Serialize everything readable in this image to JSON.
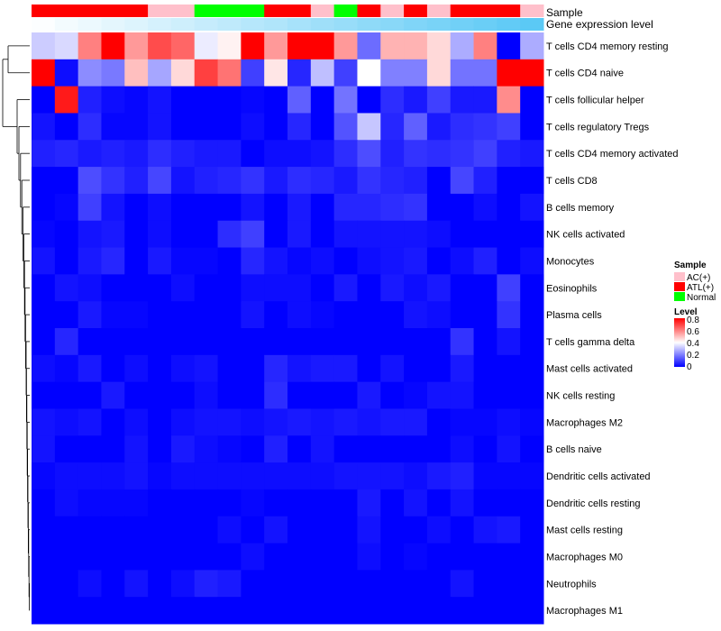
{
  "chart_data": {
    "type": "heatmap",
    "title": "",
    "top_annotations": [
      {
        "name": "Sample",
        "values": [
          "ATL(+)",
          "ATL(+)",
          "ATL(+)",
          "ATL(+)",
          "ATL(+)",
          "AC(+)",
          "AC(+)",
          "Normal",
          "Normal",
          "Normal",
          "ATL(+)",
          "ATL(+)",
          "AC(+)",
          "Normal",
          "ATL(+)",
          "AC(+)",
          "ATL(+)",
          "AC(+)",
          "ATL(+)",
          "ATL(+)",
          "ATL(+)",
          "AC(+)"
        ]
      },
      {
        "name": "Gene expression level",
        "values": [
          0.02,
          0.07,
          0.11,
          0.16,
          0.2,
          0.25,
          0.29,
          0.34,
          0.38,
          0.43,
          0.47,
          0.52,
          0.57,
          0.61,
          0.66,
          0.7,
          0.75,
          0.79,
          0.84,
          0.88,
          0.93,
          0.97
        ]
      }
    ],
    "rows": [
      "T cells CD4 memory resting",
      "T cells CD4 naive",
      "T cells follicular helper",
      "T cells regulatory  Tregs",
      "T cells CD4 memory activated",
      "T cells CD8",
      "B cells memory",
      "NK cells activated",
      "Monocytes",
      "Eosinophils",
      "Plasma cells",
      "T cells gamma delta",
      "Mast cells activated",
      "NK cells resting",
      "Macrophages M2",
      "B cells naive",
      "Dendritic cells activated",
      "Dendritic cells resting",
      "Mast cells resting",
      "Macrophages M0",
      "Neutrophils",
      "Macrophages M1"
    ],
    "values": [
      [
        0.32,
        0.34,
        0.6,
        0.8,
        0.56,
        0.68,
        0.64,
        0.37,
        0.42,
        0.8,
        0.56,
        0.8,
        0.8,
        0.56,
        0.17,
        0.52,
        0.52,
        0.46,
        0.27,
        0.6,
        0.0,
        0.27
      ],
      [
        0.8,
        0.02,
        0.22,
        0.19,
        0.5,
        0.26,
        0.46,
        0.7,
        0.62,
        0.1,
        0.44,
        0.06,
        0.3,
        0.1,
        0.4,
        0.2,
        0.2,
        0.46,
        0.18,
        0.18,
        0.8,
        0.8
      ],
      [
        0.0,
        0.76,
        0.05,
        0.02,
        0.01,
        0.03,
        0.0,
        0.0,
        0.0,
        0.01,
        0.0,
        0.15,
        0.0,
        0.18,
        0.0,
        0.07,
        0.04,
        0.1,
        0.04,
        0.04,
        0.58,
        0.0
      ],
      [
        0.03,
        0.0,
        0.07,
        0.01,
        0.01,
        0.03,
        0.0,
        0.0,
        0.0,
        0.02,
        0.0,
        0.06,
        0.0,
        0.13,
        0.31,
        0.06,
        0.15,
        0.04,
        0.07,
        0.08,
        0.1,
        0.0
      ],
      [
        0.05,
        0.06,
        0.04,
        0.05,
        0.04,
        0.07,
        0.05,
        0.04,
        0.04,
        0.0,
        0.02,
        0.02,
        0.03,
        0.07,
        0.12,
        0.05,
        0.08,
        0.07,
        0.08,
        0.1,
        0.05,
        0.04
      ],
      [
        0.0,
        0.0,
        0.12,
        0.08,
        0.05,
        0.11,
        0.03,
        0.05,
        0.06,
        0.08,
        0.04,
        0.07,
        0.06,
        0.04,
        0.08,
        0.06,
        0.05,
        0.0,
        0.11,
        0.05,
        0.0,
        0.0
      ],
      [
        0.0,
        0.01,
        0.1,
        0.03,
        0.0,
        0.02,
        0.0,
        0.0,
        0.0,
        0.03,
        0.0,
        0.04,
        0.0,
        0.06,
        0.06,
        0.07,
        0.08,
        0.0,
        0.0,
        0.02,
        0.0,
        0.03
      ],
      [
        0.01,
        0.0,
        0.03,
        0.04,
        0.0,
        0.02,
        0.0,
        0.0,
        0.07,
        0.1,
        0.0,
        0.04,
        0.0,
        0.03,
        0.03,
        0.03,
        0.03,
        0.02,
        0.0,
        0.0,
        0.0,
        0.0
      ],
      [
        0.03,
        0.0,
        0.04,
        0.06,
        0.0,
        0.04,
        0.01,
        0.01,
        0.0,
        0.06,
        0.03,
        0.01,
        0.02,
        0.0,
        0.02,
        0.03,
        0.04,
        0.0,
        0.02,
        0.05,
        0.0,
        0.02
      ],
      [
        0.0,
        0.03,
        0.02,
        0.0,
        0.0,
        0.0,
        0.02,
        0.0,
        0.0,
        0.02,
        0.02,
        0.02,
        0.0,
        0.04,
        0.0,
        0.04,
        0.02,
        0.04,
        0.0,
        0.0,
        0.1,
        0.0
      ],
      [
        0.0,
        0.0,
        0.04,
        0.01,
        0.01,
        0.0,
        0.0,
        0.0,
        0.0,
        0.03,
        0.0,
        0.02,
        0.01,
        0.0,
        0.0,
        0.0,
        0.03,
        0.02,
        0.0,
        0.0,
        0.08,
        0.0
      ],
      [
        0.0,
        0.06,
        0.0,
        0.0,
        0.0,
        0.0,
        0.0,
        0.0,
        0.0,
        0.0,
        0.0,
        0.0,
        0.0,
        0.0,
        0.0,
        0.0,
        0.0,
        0.0,
        0.08,
        0.0,
        0.03,
        0.0
      ],
      [
        0.02,
        0.01,
        0.04,
        0.0,
        0.02,
        0.0,
        0.02,
        0.03,
        0.0,
        0.0,
        0.06,
        0.03,
        0.04,
        0.04,
        0.0,
        0.03,
        0.0,
        0.0,
        0.04,
        0.0,
        0.0,
        0.0
      ],
      [
        0.0,
        0.0,
        0.0,
        0.04,
        0.0,
        0.0,
        0.0,
        0.02,
        0.0,
        0.0,
        0.07,
        0.0,
        0.0,
        0.0,
        0.04,
        0.0,
        0.01,
        0.03,
        0.03,
        0.0,
        0.0,
        0.0
      ],
      [
        0.03,
        0.02,
        0.03,
        0.0,
        0.02,
        0.0,
        0.02,
        0.03,
        0.03,
        0.02,
        0.03,
        0.04,
        0.03,
        0.04,
        0.03,
        0.04,
        0.04,
        0.0,
        0.01,
        0.01,
        0.02,
        0.01
      ],
      [
        0.03,
        0.0,
        0.0,
        0.0,
        0.03,
        0.0,
        0.04,
        0.02,
        0.01,
        0.0,
        0.05,
        0.0,
        0.03,
        0.0,
        0.0,
        0.0,
        0.0,
        0.0,
        0.02,
        0.0,
        0.03,
        0.0
      ],
      [
        0.01,
        0.02,
        0.02,
        0.02,
        0.03,
        0.01,
        0.02,
        0.02,
        0.02,
        0.02,
        0.02,
        0.02,
        0.02,
        0.03,
        0.03,
        0.03,
        0.02,
        0.04,
        0.05,
        0.01,
        0.01,
        0.01
      ],
      [
        0.0,
        0.02,
        0.01,
        0.01,
        0.01,
        0.0,
        0.0,
        0.0,
        0.0,
        0.01,
        0.0,
        0.0,
        0.0,
        0.0,
        0.04,
        0.0,
        0.03,
        0.0,
        0.03,
        0.0,
        0.0,
        0.0
      ],
      [
        0.0,
        0.0,
        0.0,
        0.0,
        0.0,
        0.0,
        0.0,
        0.0,
        0.02,
        0.0,
        0.03,
        0.0,
        0.0,
        0.0,
        0.03,
        0.0,
        0.0,
        0.02,
        0.0,
        0.03,
        0.04,
        0.0
      ],
      [
        0.0,
        0.0,
        0.0,
        0.0,
        0.0,
        0.0,
        0.0,
        0.0,
        0.0,
        0.02,
        0.0,
        0.0,
        0.0,
        0.0,
        0.02,
        0.0,
        0.01,
        0.0,
        0.0,
        0.0,
        0.0,
        0.0
      ],
      [
        0.0,
        0.0,
        0.02,
        0.0,
        0.03,
        0.0,
        0.02,
        0.05,
        0.04,
        0.0,
        0.0,
        0.0,
        0.0,
        0.0,
        0.0,
        0.0,
        0.0,
        0.0,
        0.03,
        0.0,
        0.0,
        0.0
      ],
      [
        0.0,
        0.0,
        0.0,
        0.0,
        0.0,
        0.0,
        0.0,
        0.0,
        0.0,
        0.0,
        0.0,
        0.0,
        0.0,
        0.0,
        0.0,
        0.0,
        0.0,
        0.0,
        0.0,
        0.0,
        0.0,
        0.0
      ]
    ],
    "color_scale": {
      "stops": [
        {
          "value": 0,
          "color": "#0000FF"
        },
        {
          "value": 0.4,
          "color": "#FFFFFF"
        },
        {
          "value": 0.8,
          "color": "#FF0000"
        }
      ]
    },
    "legends": {
      "sample": {
        "title": "Sample",
        "entries": [
          {
            "label": "AC(+)",
            "color": "#FFC0CB"
          },
          {
            "label": "ATL(+)",
            "color": "#FF0000"
          },
          {
            "label": "Normal",
            "color": "#00FF00"
          }
        ]
      },
      "level": {
        "title": "Level",
        "ticks": [
          0.8,
          0.6,
          0.4,
          0.2,
          0
        ],
        "tick_labels": [
          "0.8",
          "0.6",
          "0.4",
          "0.2",
          "0"
        ]
      }
    },
    "gene_expression_colors": {
      "low": "#FFFFFF",
      "high": "#56C7F5"
    },
    "row_dendrogram": "present",
    "legend_placement": "right"
  }
}
